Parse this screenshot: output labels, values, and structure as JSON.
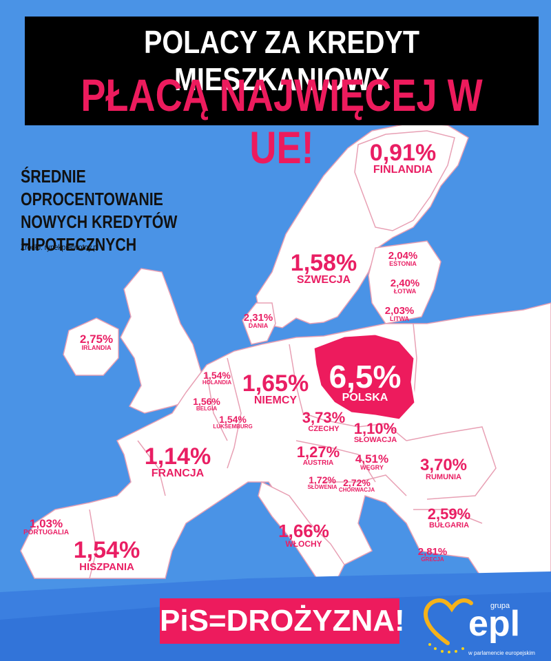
{
  "headline": {
    "line1": "POLACY ZA KREDYT MIESZKANIOWY",
    "line2": "PŁACĄ NAJWIĘCEJ W UE!"
  },
  "subtitle": {
    "line1": "ŚREDNIE OPROCENTOWANIE",
    "line2": "NOWYCH KREDYTÓW",
    "line3": "HIPOTECZNYCH"
  },
  "source": "Źródło: rynekpierwotny.pl",
  "countries": {
    "finlandia": {
      "value": "0,91%",
      "name": "FINLANDIA"
    },
    "szwecja": {
      "value": "1,58%",
      "name": "SZWECJA"
    },
    "estonia": {
      "value": "2,04%",
      "name": "ESTONIA"
    },
    "lotwa": {
      "value": "2,40%",
      "name": "ŁOTWA"
    },
    "litwa": {
      "value": "2,03%",
      "name": "LITWA"
    },
    "dania": {
      "value": "2,31%",
      "name": "DANIA"
    },
    "irlandia": {
      "value": "2,75%",
      "name": "IRLANDIA"
    },
    "holandia": {
      "value": "1,54%",
      "name": "HOLANDIA"
    },
    "belgia": {
      "value": "1,56%",
      "name": "BELGIA"
    },
    "luksemburg": {
      "value": "1,54%",
      "name": "LUKSEMBURG"
    },
    "niemcy": {
      "value": "1,65%",
      "name": "NIEMCY"
    },
    "polska": {
      "value": "6,5%",
      "name": "POLSKA"
    },
    "czechy": {
      "value": "3,73%",
      "name": "CZECHY"
    },
    "slowacja": {
      "value": "1,10%",
      "name": "SŁOWACJA"
    },
    "francja": {
      "value": "1,14%",
      "name": "FRANCJA"
    },
    "austria": {
      "value": "1,27%",
      "name": "AUSTRIA"
    },
    "wegry": {
      "value": "4,51%",
      "name": "WĘGRY"
    },
    "rumunia": {
      "value": "3,70%",
      "name": "RUMUNIA"
    },
    "slowenia": {
      "value": "1,72%",
      "name": "SŁOWENIA"
    },
    "chorwacja": {
      "value": "2,72%",
      "name": "CHORWACJA"
    },
    "portugalia": {
      "value": "1,03%",
      "name": "PORTUGALIA"
    },
    "hiszpania": {
      "value": "1,54%",
      "name": "HISZPANIA"
    },
    "wlochy": {
      "value": "1,66%",
      "name": "WŁOCHY"
    },
    "bulgaria": {
      "value": "2,59%",
      "name": "BUŁGARIA"
    },
    "grecja": {
      "value": "2,81%",
      "name": "GRECJA"
    }
  },
  "slogan": "PiS=DROŻYZNA!",
  "logo": {
    "grupa": "grupa",
    "name": "epl",
    "sub": "w parlamencie europejskim"
  },
  "colors": {
    "sea": "#4a93e6",
    "land": "#ffffff",
    "border": "#e8a0b4",
    "accent": "#ed1b5d",
    "poland": "#ed1b5d",
    "headline_bg": "#000000"
  }
}
